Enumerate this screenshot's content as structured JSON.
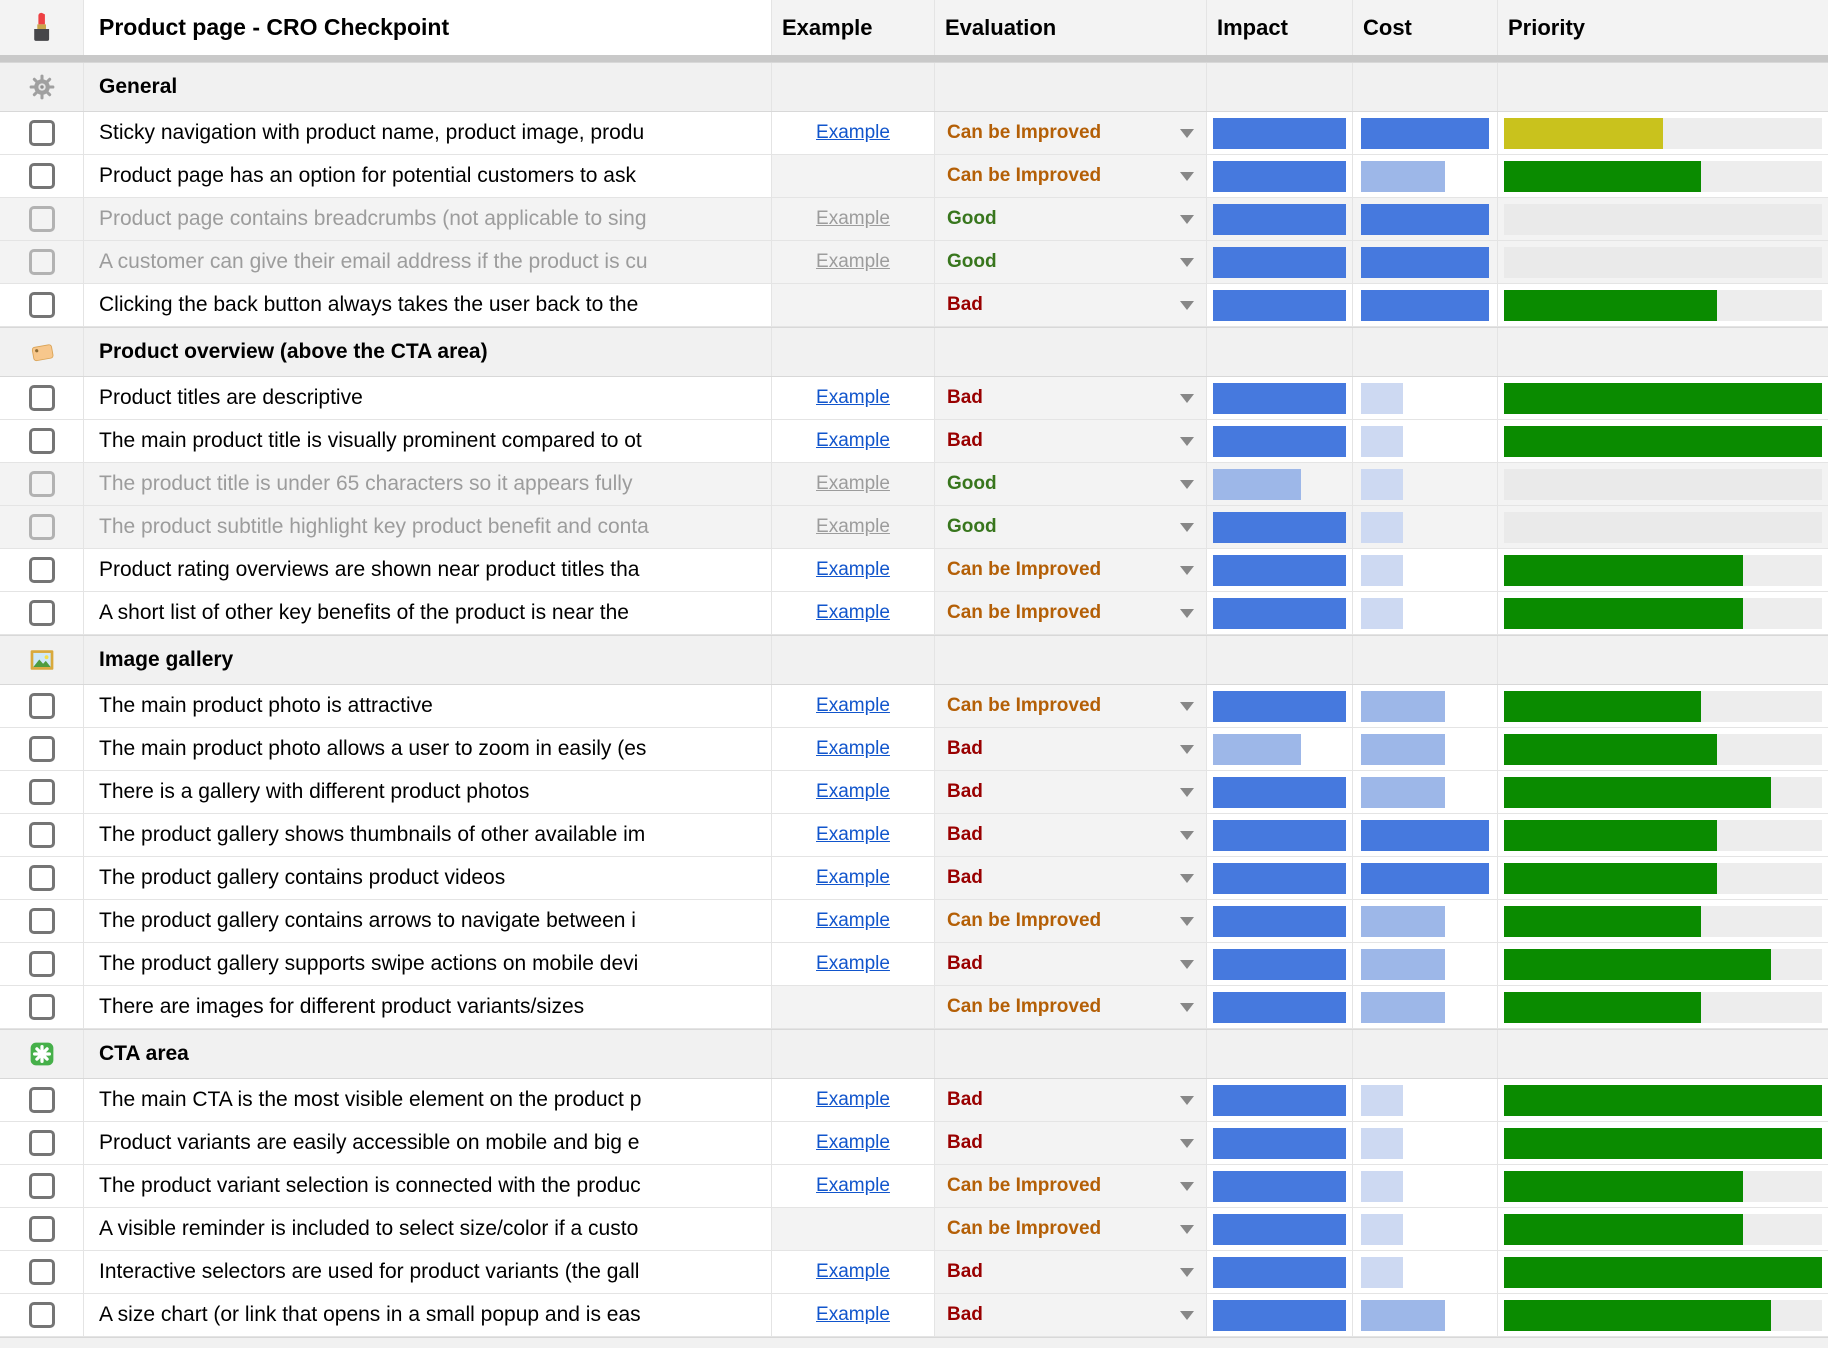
{
  "header": {
    "title": "Product page - CRO Checkpoint",
    "icon": "lipstick-icon",
    "columns": [
      "Example",
      "Evaluation",
      "Impact",
      "Cost",
      "Priority"
    ]
  },
  "labels": {
    "example_link": "Example"
  },
  "evaluation": {
    "options_seen": [
      "Can be Improved",
      "Good",
      "Bad"
    ],
    "colors": {
      "Can be Improved": "#b45f06",
      "Good": "#38761d",
      "Bad": "#990000"
    }
  },
  "bars": {
    "level_widths_pct": {
      "1": 33,
      "2": 66,
      "3": 100
    },
    "impact_colors": {
      "1": "#cdd9f2",
      "2": "#9db7e8",
      "3": "#4679de"
    },
    "cost_colors": {
      "1": "#cdd9f2",
      "2": "#9db7e8",
      "3": "#4679de"
    },
    "priority_colors": {
      "green": "#0a8b00",
      "yellow": "#c9c21d"
    },
    "track_color": "#ededed"
  },
  "sections": [
    {
      "title": "General",
      "icon": "gear-icon",
      "rows": [
        {
          "text": "Sticky navigation with product name, product image, produ",
          "disabled": false,
          "example": true,
          "evaluation": "Can be Improved",
          "impact": 3,
          "cost": 3,
          "priority": 50,
          "priority_color": "yellow"
        },
        {
          "text": "Product page has an option for potential customers to ask",
          "disabled": false,
          "example": false,
          "evaluation": "Can be Improved",
          "impact": 3,
          "cost": 2,
          "priority": 62,
          "priority_color": "green"
        },
        {
          "text": "Product page contains breadcrumbs (not applicable to sing",
          "disabled": true,
          "example": true,
          "evaluation": "Good",
          "impact": 3,
          "cost": 3,
          "priority": null,
          "priority_color": null
        },
        {
          "text": "A customer can give their email address if the product is cu",
          "disabled": true,
          "example": true,
          "evaluation": "Good",
          "impact": 3,
          "cost": 3,
          "priority": null,
          "priority_color": null
        },
        {
          "text": "Clicking the back button always takes the user back to the",
          "disabled": false,
          "example": false,
          "evaluation": "Bad",
          "impact": 3,
          "cost": 3,
          "priority": 67,
          "priority_color": "green"
        }
      ]
    },
    {
      "title": "Product overview (above the CTA area)",
      "icon": "tag-icon",
      "rows": [
        {
          "text": "Product titles are descriptive",
          "disabled": false,
          "example": true,
          "evaluation": "Bad",
          "impact": 3,
          "cost": 1,
          "priority": 100,
          "priority_color": "green"
        },
        {
          "text": "The main product title is visually prominent compared to ot",
          "disabled": false,
          "example": true,
          "evaluation": "Bad",
          "impact": 3,
          "cost": 1,
          "priority": 100,
          "priority_color": "green"
        },
        {
          "text": "The product title is under 65 characters so it appears fully",
          "disabled": true,
          "example": true,
          "evaluation": "Good",
          "impact": 2,
          "cost": 1,
          "priority": null,
          "priority_color": null
        },
        {
          "text": "The product subtitle highlight key product benefit and conta",
          "disabled": true,
          "example": true,
          "evaluation": "Good",
          "impact": 3,
          "cost": 1,
          "priority": null,
          "priority_color": null
        },
        {
          "text": "Product rating overviews are shown near product titles tha",
          "disabled": false,
          "example": true,
          "evaluation": "Can be Improved",
          "impact": 3,
          "cost": 1,
          "priority": 75,
          "priority_color": "green"
        },
        {
          "text": "A short list of other key benefits of the product is near the",
          "disabled": false,
          "example": true,
          "evaluation": "Can be Improved",
          "impact": 3,
          "cost": 1,
          "priority": 75,
          "priority_color": "green"
        }
      ]
    },
    {
      "title": "Image gallery",
      "icon": "picture-icon",
      "rows": [
        {
          "text": "The main product photo is attractive",
          "disabled": false,
          "example": true,
          "evaluation": "Can be Improved",
          "impact": 3,
          "cost": 2,
          "priority": 62,
          "priority_color": "green"
        },
        {
          "text": "The main product photo allows a user to zoom in easily (es",
          "disabled": false,
          "example": true,
          "evaluation": "Bad",
          "impact": 2,
          "cost": 2,
          "priority": 67,
          "priority_color": "green"
        },
        {
          "text": "There is a gallery with different product photos",
          "disabled": false,
          "example": true,
          "evaluation": "Bad",
          "impact": 3,
          "cost": 2,
          "priority": 84,
          "priority_color": "green"
        },
        {
          "text": "The product gallery shows thumbnails of other available im",
          "disabled": false,
          "example": true,
          "evaluation": "Bad",
          "impact": 3,
          "cost": 3,
          "priority": 67,
          "priority_color": "green"
        },
        {
          "text": "The product gallery contains product videos",
          "disabled": false,
          "example": true,
          "evaluation": "Bad",
          "impact": 3,
          "cost": 3,
          "priority": 67,
          "priority_color": "green"
        },
        {
          "text": "The product gallery contains arrows to navigate between i",
          "disabled": false,
          "example": true,
          "evaluation": "Can be Improved",
          "impact": 3,
          "cost": 2,
          "priority": 62,
          "priority_color": "green"
        },
        {
          "text": "The product gallery supports swipe actions on mobile devi",
          "disabled": false,
          "example": true,
          "evaluation": "Bad",
          "impact": 3,
          "cost": 2,
          "priority": 84,
          "priority_color": "green"
        },
        {
          "text": "There are images for different product variants/sizes",
          "disabled": false,
          "example": false,
          "evaluation": "Can be Improved",
          "impact": 3,
          "cost": 2,
          "priority": 62,
          "priority_color": "green"
        }
      ]
    },
    {
      "title": "CTA area",
      "icon": "asterisk-icon",
      "rows": [
        {
          "text": "The main CTA is the most visible element on the product p",
          "disabled": false,
          "example": true,
          "evaluation": "Bad",
          "impact": 3,
          "cost": 1,
          "priority": 100,
          "priority_color": "green"
        },
        {
          "text": "Product variants are easily accessible on mobile and big e",
          "disabled": false,
          "example": true,
          "evaluation": "Bad",
          "impact": 3,
          "cost": 1,
          "priority": 100,
          "priority_color": "green"
        },
        {
          "text": "The product variant selection is connected with the produc",
          "disabled": false,
          "example": true,
          "evaluation": "Can be Improved",
          "impact": 3,
          "cost": 1,
          "priority": 75,
          "priority_color": "green"
        },
        {
          "text": "A visible reminder is included to select size/color if a custo",
          "disabled": false,
          "example": false,
          "evaluation": "Can be Improved",
          "impact": 3,
          "cost": 1,
          "priority": 75,
          "priority_color": "green"
        },
        {
          "text": "Interactive selectors are used for product variants (the gall",
          "disabled": false,
          "example": true,
          "evaluation": "Bad",
          "impact": 3,
          "cost": 1,
          "priority": 100,
          "priority_color": "green"
        },
        {
          "text": "A size chart (or link that opens in a small popup and is eas",
          "disabled": false,
          "example": true,
          "evaluation": "Bad",
          "impact": 3,
          "cost": 2,
          "priority": 84,
          "priority_color": "green"
        }
      ]
    }
  ]
}
